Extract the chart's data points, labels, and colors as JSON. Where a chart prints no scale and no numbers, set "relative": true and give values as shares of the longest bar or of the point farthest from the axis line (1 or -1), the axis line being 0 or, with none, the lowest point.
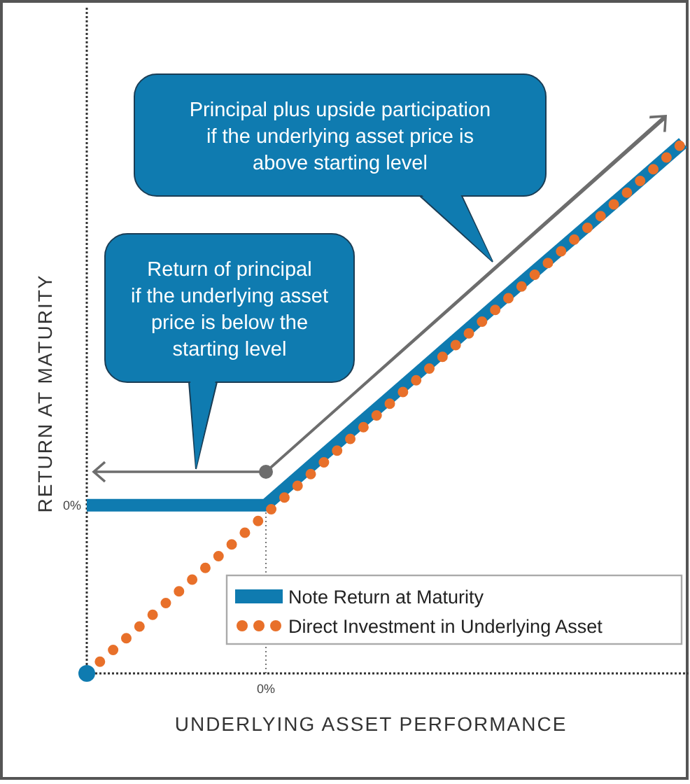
{
  "chart_data": {
    "type": "line",
    "xlabel": "UNDERLYING ASSET PERFORMANCE",
    "ylabel": "RETURN AT MATURITY",
    "relative": true,
    "categories": [
      null,
      null,
      null,
      null,
      null,
      null,
      null,
      null,
      null,
      null,
      null
    ],
    "series": [
      {
        "name": "Note Return at Maturity",
        "color": "#0f7bb0",
        "values": [
          0.317,
          0.317,
          0.317,
          0.317,
          0.415,
          0.512,
          0.61,
          0.708,
          0.805,
          0.902,
          1
        ],
        "line_style": "solid"
      },
      {
        "name": "Direct Investment in Underlying Asset",
        "color": "#e8702a",
        "values": [
          0,
          0.1,
          0.2,
          0.3,
          0.4,
          0.5,
          0.6,
          0.7,
          0.8,
          0.9,
          1
        ],
        "line_style": "dotted"
      }
    ],
    "legend": "bottom right",
    "marker": "none",
    "annotations": [
      "Principal plus upside participation\nif the underlying asset price is\nabove starting level",
      "Return of principal\nif the underlying asset\nprice is below the\nstarting level",
      "0%",
      "0%"
    ]
  }
}
